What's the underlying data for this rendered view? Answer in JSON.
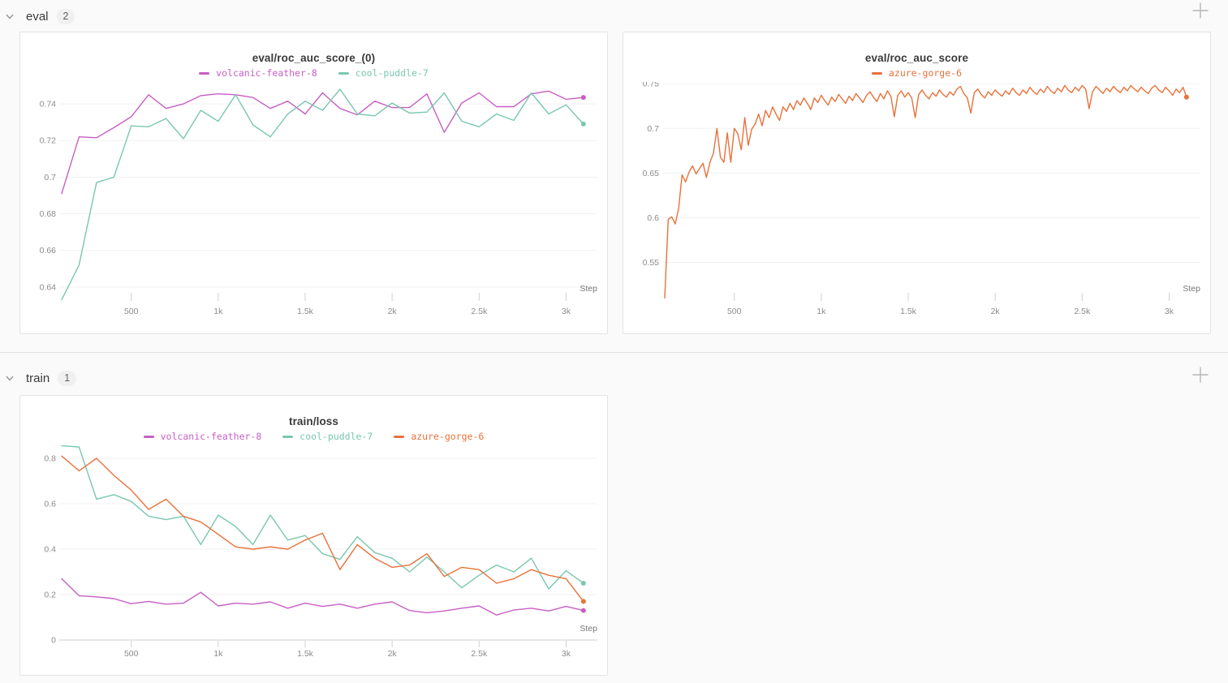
{
  "sections": [
    {
      "label": "eval",
      "count": "2"
    },
    {
      "label": "train",
      "count": "1"
    }
  ],
  "icons": {
    "section_toggle": "chevron-down",
    "add_panel": "plus"
  },
  "chart_data": [
    {
      "type": "line",
      "title": "eval/roc_auc_score_(0)",
      "xlabel": "Step",
      "grid": true,
      "legend_position": "top-center",
      "xlim": [
        100,
        3180
      ],
      "ylim": [
        0.6315,
        0.752
      ],
      "yticks": [
        0.64,
        0.66,
        0.68,
        0.7,
        0.72,
        0.74
      ],
      "ytick_labels": [
        "0.64",
        "0.66",
        "0.68",
        "0.7",
        "0.72",
        "0.74"
      ],
      "xticks": [
        500,
        1000,
        1500,
        2000,
        2500,
        3000
      ],
      "xtick_labels": [
        "500",
        "1k",
        "1.5k",
        "2k",
        "2.5k",
        "3k"
      ],
      "series": [
        {
          "name": "volcanic-feather-8",
          "color": "#C75FC4",
          "x_start": 100,
          "x_step": 100,
          "end_dot": true,
          "values": [
            0.691,
            0.722,
            0.7215,
            0.727,
            0.733,
            0.745,
            0.7375,
            0.74,
            0.7445,
            0.7455,
            0.745,
            0.7435,
            0.7375,
            0.7415,
            0.7345,
            0.746,
            0.7375,
            0.734,
            0.7415,
            0.738,
            0.738,
            0.7455,
            0.7245,
            0.7405,
            0.746,
            0.7385,
            0.7385,
            0.7455,
            0.747,
            0.7425,
            0.7435
          ]
        },
        {
          "name": "cool-puddle-7",
          "color": "#79C7B1",
          "x_start": 100,
          "x_step": 100,
          "end_dot": true,
          "values": [
            0.633,
            0.652,
            0.697,
            0.7,
            0.728,
            0.7275,
            0.732,
            0.721,
            0.7365,
            0.7305,
            0.745,
            0.7285,
            0.722,
            0.7345,
            0.7415,
            0.7365,
            0.748,
            0.7345,
            0.7335,
            0.7405,
            0.735,
            0.7355,
            0.746,
            0.7305,
            0.7275,
            0.7345,
            0.731,
            0.746,
            0.7345,
            0.7395,
            0.729
          ]
        }
      ]
    },
    {
      "type": "line",
      "title": "eval/roc_auc_score",
      "xlabel": "Step",
      "grid": true,
      "legend_position": "top-center",
      "xlim": [
        100,
        3180
      ],
      "ylim": [
        0.505,
        0.752
      ],
      "yticks": [
        0.55,
        0.6,
        0.65,
        0.7,
        0.75
      ],
      "ytick_labels": [
        "0.55",
        "0.6",
        "0.65",
        "0.7",
        "0.75"
      ],
      "xticks": [
        500,
        1000,
        1500,
        2000,
        2500,
        3000
      ],
      "xtick_labels": [
        "500",
        "1k",
        "1.5k",
        "2k",
        "2.5k",
        "3k"
      ],
      "series": [
        {
          "name": "azure-gorge-6",
          "color": "#E8713A",
          "x_start": 100,
          "x_step": 20,
          "end_dot": true,
          "values": [
            0.51,
            0.598,
            0.601,
            0.593,
            0.61,
            0.648,
            0.64,
            0.651,
            0.658,
            0.649,
            0.655,
            0.661,
            0.645,
            0.662,
            0.672,
            0.7,
            0.668,
            0.662,
            0.695,
            0.662,
            0.7,
            0.694,
            0.676,
            0.712,
            0.681,
            0.699,
            0.705,
            0.716,
            0.703,
            0.72,
            0.712,
            0.724,
            0.716,
            0.709,
            0.724,
            0.719,
            0.728,
            0.721,
            0.731,
            0.726,
            0.734,
            0.728,
            0.721,
            0.734,
            0.729,
            0.737,
            0.731,
            0.726,
            0.735,
            0.73,
            0.738,
            0.733,
            0.728,
            0.736,
            0.731,
            0.739,
            0.734,
            0.729,
            0.737,
            0.741,
            0.735,
            0.73,
            0.739,
            0.733,
            0.742,
            0.736,
            0.713,
            0.737,
            0.742,
            0.735,
            0.74,
            0.734,
            0.712,
            0.738,
            0.743,
            0.737,
            0.733,
            0.74,
            0.736,
            0.743,
            0.738,
            0.735,
            0.741,
            0.737,
            0.744,
            0.747,
            0.739,
            0.734,
            0.717,
            0.74,
            0.744,
            0.738,
            0.734,
            0.741,
            0.737,
            0.743,
            0.739,
            0.736,
            0.742,
            0.738,
            0.745,
            0.74,
            0.737,
            0.743,
            0.739,
            0.746,
            0.741,
            0.738,
            0.744,
            0.74,
            0.747,
            0.742,
            0.739,
            0.745,
            0.741,
            0.748,
            0.743,
            0.74,
            0.746,
            0.742,
            0.748,
            0.744,
            0.722,
            0.741,
            0.747,
            0.743,
            0.739,
            0.745,
            0.741,
            0.747,
            0.743,
            0.74,
            0.746,
            0.742,
            0.748,
            0.744,
            0.741,
            0.746,
            0.742,
            0.739,
            0.745,
            0.748,
            0.743,
            0.74,
            0.746,
            0.742,
            0.737,
            0.744,
            0.74,
            0.746,
            0.735
          ]
        }
      ]
    },
    {
      "type": "line",
      "title": "train/loss",
      "xlabel": "Step",
      "grid": true,
      "legend_position": "top-center",
      "xlim": [
        100,
        3180
      ],
      "ylim": [
        0,
        0.857
      ],
      "yticks": [
        0,
        0.2,
        0.4,
        0.6,
        0.8
      ],
      "ytick_labels": [
        "0",
        "0.2",
        "0.4",
        "0.6",
        "0.8"
      ],
      "xticks": [
        500,
        1000,
        1500,
        2000,
        2500,
        3000
      ],
      "xtick_labels": [
        "500",
        "1k",
        "1.5k",
        "2k",
        "2.5k",
        "3k"
      ],
      "series": [
        {
          "name": "volcanic-feather-8",
          "color": "#C75FC4",
          "x_start": 100,
          "x_step": 100,
          "end_dot": true,
          "values": [
            0.27,
            0.195,
            0.19,
            0.182,
            0.16,
            0.17,
            0.158,
            0.162,
            0.21,
            0.15,
            0.162,
            0.158,
            0.168,
            0.14,
            0.162,
            0.148,
            0.158,
            0.14,
            0.158,
            0.168,
            0.13,
            0.12,
            0.128,
            0.14,
            0.15,
            0.11,
            0.132,
            0.14,
            0.128,
            0.148,
            0.13
          ]
        },
        {
          "name": "cool-puddle-7",
          "color": "#79C7B1",
          "x_start": 100,
          "x_step": 100,
          "end_dot": true,
          "values": [
            0.855,
            0.85,
            0.62,
            0.64,
            0.61,
            0.545,
            0.53,
            0.545,
            0.42,
            0.55,
            0.5,
            0.42,
            0.55,
            0.44,
            0.46,
            0.38,
            0.355,
            0.455,
            0.385,
            0.36,
            0.3,
            0.365,
            0.3,
            0.23,
            0.285,
            0.33,
            0.3,
            0.36,
            0.225,
            0.305,
            0.25
          ]
        },
        {
          "name": "azure-gorge-6",
          "color": "#E8713A",
          "x_start": 100,
          "x_step": 100,
          "end_dot": true,
          "values": [
            0.81,
            0.745,
            0.8,
            0.725,
            0.66,
            0.575,
            0.62,
            0.545,
            0.52,
            0.465,
            0.41,
            0.4,
            0.41,
            0.4,
            0.44,
            0.47,
            0.31,
            0.42,
            0.36,
            0.32,
            0.33,
            0.38,
            0.28,
            0.32,
            0.31,
            0.25,
            0.27,
            0.31,
            0.285,
            0.27,
            0.17
          ]
        }
      ]
    }
  ]
}
